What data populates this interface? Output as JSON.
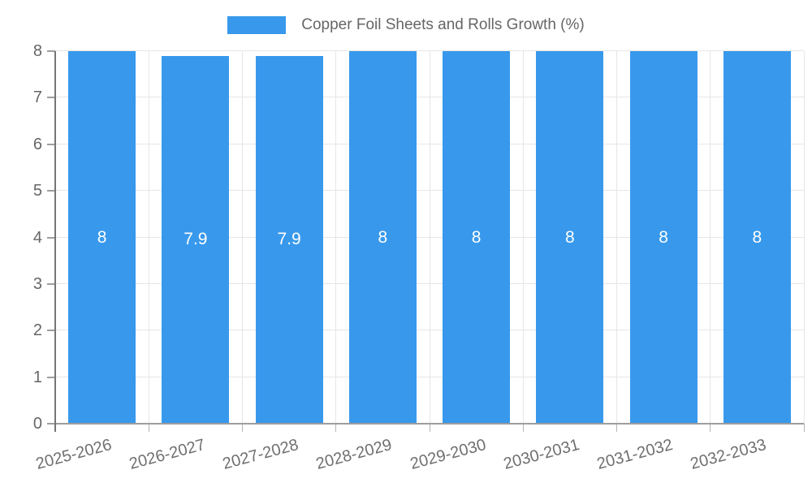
{
  "legend": {
    "label": "Copper Foil Sheets and Rolls Growth (%)"
  },
  "chart_data": {
    "type": "bar",
    "title": "Copper Foil Sheets and Rolls Growth (%)",
    "categories": [
      "2025-2026",
      "2026-2027",
      "2027-2028",
      "2028-2029",
      "2029-2030",
      "2030-2031",
      "2031-2032",
      "2032-2033"
    ],
    "values": [
      8,
      7.9,
      7.9,
      8,
      8,
      8,
      8,
      8
    ],
    "value_labels": [
      "8",
      "7.9",
      "7.9",
      "8",
      "8",
      "8",
      "8",
      "8"
    ],
    "ylim": [
      0,
      8
    ],
    "yticks": [
      0,
      1,
      2,
      3,
      4,
      5,
      6,
      7,
      8
    ],
    "xlabel": "",
    "ylabel": "",
    "grid": true,
    "legend_position": "top",
    "x_label_rotation_deg": -15,
    "colors": {
      "bar": "#3899EC",
      "value_label": "#ffffff",
      "axis_text": "#666666",
      "gridline": "#e6e6e6",
      "baseline": "#9e9e9e",
      "axis_line": "#757575",
      "tick": "#b5b5b5"
    }
  }
}
